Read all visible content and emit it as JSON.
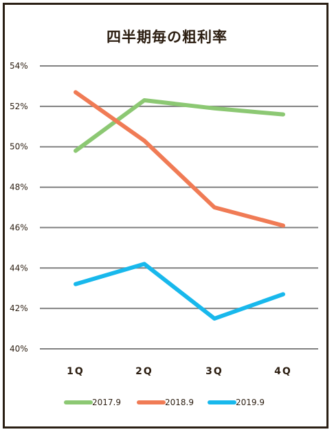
{
  "chart_data": {
    "type": "line",
    "title": "四半期毎の粗利率",
    "categories": [
      "1Q",
      "2Q",
      "3Q",
      "4Q"
    ],
    "yticks": [
      "40%",
      "42%",
      "44%",
      "46%",
      "48%",
      "50%",
      "52%",
      "54%"
    ],
    "ylim": [
      40,
      54
    ],
    "grid": true,
    "legend_position": "bottom",
    "series": [
      {
        "name": "2017.9",
        "color": "#8cc873",
        "values": [
          49.8,
          52.3,
          51.9,
          51.6
        ]
      },
      {
        "name": "2018.9",
        "color": "#f07b55",
        "values": [
          52.7,
          50.3,
          47.0,
          46.1
        ]
      },
      {
        "name": "2019.9",
        "color": "#18b8ec",
        "values": [
          43.2,
          44.2,
          41.5,
          42.7
        ]
      }
    ]
  }
}
